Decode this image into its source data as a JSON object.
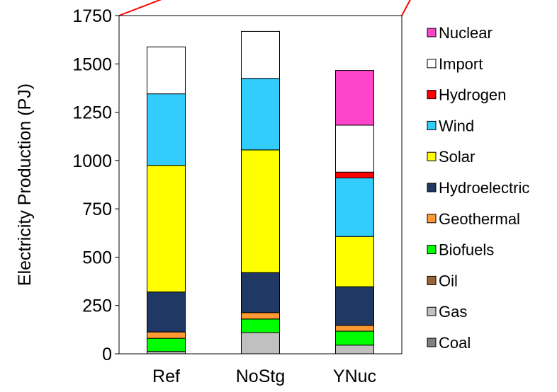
{
  "chart_data": {
    "type": "bar",
    "stacked": true,
    "title": "",
    "xlabel": "",
    "ylabel": "Electricity Production (PJ)",
    "ylim": [
      0,
      1750
    ],
    "yticks": [
      0,
      250,
      500,
      750,
      1000,
      1250,
      1500,
      1750
    ],
    "grid": false,
    "legend_position": "right",
    "categories": [
      "Ref",
      "NoStg",
      "YNuc"
    ],
    "series": [
      {
        "name": "Coal",
        "color": "#808080",
        "values": [
          0,
          0,
          0
        ]
      },
      {
        "name": "Gas",
        "color": "#c0c0c0",
        "values": [
          12,
          110,
          45
        ]
      },
      {
        "name": "Oil",
        "color": "#996633",
        "values": [
          0,
          0,
          0
        ]
      },
      {
        "name": "Biofuels",
        "color": "#00ff00",
        "values": [
          68,
          70,
          72
        ]
      },
      {
        "name": "Geothermal",
        "color": "#ff9933",
        "values": [
          33,
          33,
          30
        ]
      },
      {
        "name": "Hydroelectric",
        "color": "#1f3864",
        "values": [
          207,
          207,
          200
        ]
      },
      {
        "name": "Solar",
        "color": "#ffff00",
        "values": [
          655,
          635,
          260
        ]
      },
      {
        "name": "Wind",
        "color": "#33ccff",
        "values": [
          370,
          370,
          303
        ]
      },
      {
        "name": "Hydrogen",
        "color": "#ff0000",
        "values": [
          0,
          0,
          30
        ]
      },
      {
        "name": "Import",
        "color": "#ffffff",
        "values": [
          243,
          243,
          243
        ]
      },
      {
        "name": "Nuclear",
        "color": "#ff44cc",
        "values": [
          0,
          0,
          283
        ]
      }
    ]
  }
}
